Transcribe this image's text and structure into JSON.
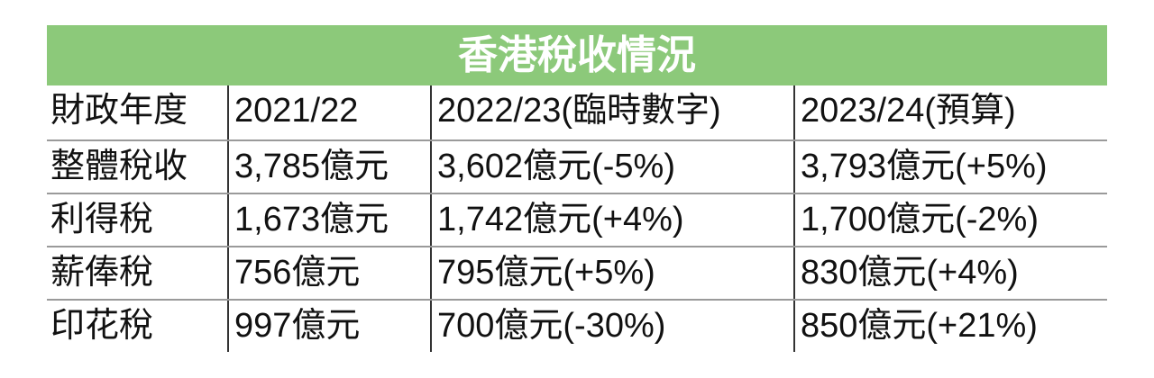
{
  "table": {
    "title": "香港稅收情況",
    "rows": [
      [
        "財政年度",
        "2021/22",
        "2022/23(臨時數字)",
        "2023/24(預算)"
      ],
      [
        "整體稅收",
        "3,785億元",
        "3,602億元(-5%)",
        "3,793億元(+5%)"
      ],
      [
        "利得稅",
        "1,673億元",
        "1,742億元(+4%)",
        "1,700億元(-2%)"
      ],
      [
        "薪俸稅",
        "756億元",
        "795億元(+5%)",
        "830億元(+4%)"
      ],
      [
        "印花稅",
        "997億元",
        "700億元(-30%)",
        "850億元(+21%)"
      ]
    ]
  }
}
